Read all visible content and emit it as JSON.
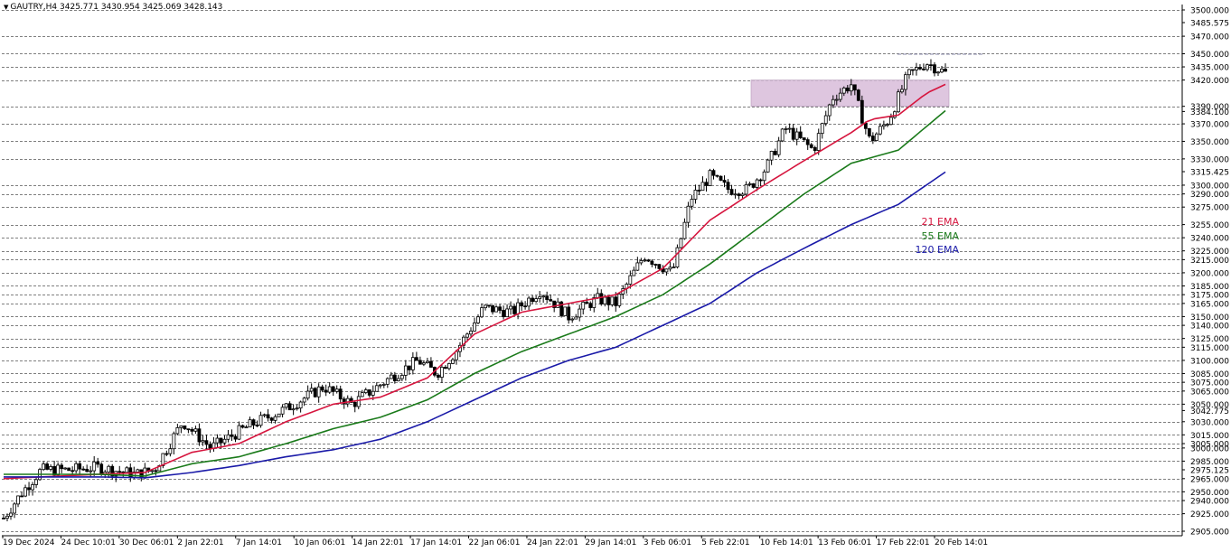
{
  "header": {
    "symbol": "GAUTRY,H4",
    "ohlc": "3425.771 3430.954 3425.069 3428.143"
  },
  "chart_data": {
    "type": "candlestick",
    "symbol": "GAUTRY",
    "timeframe": "H4",
    "y_range": [
      2900,
      3500
    ],
    "price_levels": [
      3500,
      3485.575,
      3470,
      3450,
      3435,
      3420,
      3390,
      3384.1,
      3370,
      3350,
      3330,
      3315.425,
      3300,
      3290,
      3275,
      3255,
      3240,
      3225,
      3215,
      3200,
      3185,
      3175,
      3165,
      3150,
      3140,
      3125,
      3115,
      3100,
      3085,
      3075,
      3065,
      3050,
      3042.775,
      3030,
      3015,
      3005,
      3000,
      2985,
      2975.125,
      2965,
      2950,
      2940,
      2925,
      2905
    ],
    "y_axis_labels": [
      "3500.000",
      "3485.575",
      "3470.000",
      "3450.000",
      "3435.000",
      "3420.000",
      "3390.000",
      "3384.100",
      "3370.000",
      "3350.000",
      "3330.000",
      "3315.425",
      "3300.000",
      "3290.000",
      "3275.000",
      "3255.000",
      "3240.000",
      "3225.000",
      "3215.000",
      "3200.000",
      "3185.000",
      "3175.000",
      "3165.000",
      "3150.000",
      "3140.000",
      "3125.000",
      "3115.000",
      "3100.000",
      "3085.000",
      "3075.000",
      "3065.000",
      "3050.000",
      "3042.775",
      "3030.000",
      "3015.000",
      "3005.000",
      "3000.000",
      "2985.000",
      "2975.125",
      "2965.000",
      "2950.000",
      "2940.000",
      "2925.000",
      "2905.000"
    ],
    "gridline_levels": [
      3500,
      3470,
      3450,
      3435,
      3420,
      3390,
      3370,
      3350,
      3330,
      3300,
      3290,
      3275,
      3255,
      3240,
      3225,
      3215,
      3200,
      3185,
      3175,
      3165,
      3150,
      3140,
      3125,
      3115,
      3100,
      3085,
      3075,
      3065,
      3050,
      3030,
      3015,
      3005,
      3000,
      2985,
      2965,
      2950,
      2940,
      2925,
      2905
    ],
    "x_labels": [
      "19 Dec 2024",
      "24 Dec 10:01",
      "30 Dec 06:01",
      "2 Jan 22:01",
      "7 Jan 14:01",
      "10 Jan 06:01",
      "14 Jan 22:01",
      "17 Jan 14:01",
      "22 Jan 06:01",
      "24 Jan 22:01",
      "29 Jan 14:01",
      "3 Feb 06:01",
      "5 Feb 22:01",
      "10 Feb 14:01",
      "13 Feb 06:01",
      "17 Feb 22:01",
      "20 Feb 14:01"
    ],
    "price_path": [
      [
        0,
        2920
      ],
      [
        0.02,
        2950
      ],
      [
        0.04,
        2975
      ],
      [
        0.07,
        2975
      ],
      [
        0.1,
        2978
      ],
      [
        0.14,
        2970
      ],
      [
        0.16,
        2975
      ],
      [
        0.19,
        3030
      ],
      [
        0.22,
        3000
      ],
      [
        0.26,
        3025
      ],
      [
        0.3,
        3045
      ],
      [
        0.34,
        3070
      ],
      [
        0.37,
        3050
      ],
      [
        0.41,
        3080
      ],
      [
        0.44,
        3100
      ],
      [
        0.46,
        3085
      ],
      [
        0.48,
        3110
      ],
      [
        0.51,
        3160
      ],
      [
        0.54,
        3155
      ],
      [
        0.57,
        3180
      ],
      [
        0.6,
        3150
      ],
      [
        0.63,
        3170
      ],
      [
        0.65,
        3165
      ],
      [
        0.68,
        3220
      ],
      [
        0.71,
        3200
      ],
      [
        0.73,
        3285
      ],
      [
        0.75,
        3310
      ],
      [
        0.77,
        3295
      ],
      [
        0.79,
        3295
      ],
      [
        0.81,
        3320
      ],
      [
        0.83,
        3365
      ],
      [
        0.86,
        3340
      ],
      [
        0.88,
        3400
      ],
      [
        0.9,
        3415
      ],
      [
        0.92,
        3350
      ],
      [
        0.94,
        3375
      ],
      [
        0.96,
        3425
      ],
      [
        0.98,
        3440
      ],
      [
        1.0,
        3428
      ]
    ],
    "series": [
      {
        "name": "21 EMA",
        "color": "#d6153e",
        "path": [
          [
            0,
            2965
          ],
          [
            0.1,
            2970
          ],
          [
            0.15,
            2972
          ],
          [
            0.2,
            2995
          ],
          [
            0.25,
            3005
          ],
          [
            0.3,
            3030
          ],
          [
            0.35,
            3050
          ],
          [
            0.4,
            3058
          ],
          [
            0.45,
            3080
          ],
          [
            0.5,
            3130
          ],
          [
            0.55,
            3155
          ],
          [
            0.6,
            3165
          ],
          [
            0.65,
            3175
          ],
          [
            0.7,
            3205
          ],
          [
            0.75,
            3260
          ],
          [
            0.8,
            3295
          ],
          [
            0.85,
            3328
          ],
          [
            0.9,
            3360
          ],
          [
            0.92,
            3375
          ],
          [
            0.95,
            3380
          ],
          [
            0.98,
            3405
          ],
          [
            1.0,
            3415
          ]
        ]
      },
      {
        "name": "55 EMA",
        "color": "#1a7a1a",
        "path": [
          [
            0,
            2970
          ],
          [
            0.1,
            2970
          ],
          [
            0.15,
            2968
          ],
          [
            0.2,
            2982
          ],
          [
            0.25,
            2990
          ],
          [
            0.3,
            3005
          ],
          [
            0.35,
            3022
          ],
          [
            0.4,
            3035
          ],
          [
            0.45,
            3055
          ],
          [
            0.5,
            3085
          ],
          [
            0.55,
            3110
          ],
          [
            0.6,
            3130
          ],
          [
            0.65,
            3150
          ],
          [
            0.7,
            3175
          ],
          [
            0.75,
            3210
          ],
          [
            0.8,
            3250
          ],
          [
            0.85,
            3290
          ],
          [
            0.9,
            3325
          ],
          [
            0.95,
            3340
          ],
          [
            1.0,
            3385
          ]
        ]
      },
      {
        "name": "120 EMA",
        "color": "#1a1aa8",
        "path": [
          [
            0,
            2967
          ],
          [
            0.1,
            2967
          ],
          [
            0.15,
            2966
          ],
          [
            0.2,
            2972
          ],
          [
            0.25,
            2980
          ],
          [
            0.3,
            2990
          ],
          [
            0.35,
            2998
          ],
          [
            0.4,
            3010
          ],
          [
            0.45,
            3030
          ],
          [
            0.5,
            3055
          ],
          [
            0.55,
            3080
          ],
          [
            0.6,
            3100
          ],
          [
            0.65,
            3115
          ],
          [
            0.7,
            3140
          ],
          [
            0.75,
            3165
          ],
          [
            0.8,
            3200
          ],
          [
            0.85,
            3228
          ],
          [
            0.9,
            3255
          ],
          [
            0.95,
            3278
          ],
          [
            1.0,
            3315
          ]
        ]
      }
    ],
    "zone": {
      "from_price": 3390,
      "to_price": 3420,
      "color": "#d8bcd9"
    },
    "resistance_level": 3450
  }
}
